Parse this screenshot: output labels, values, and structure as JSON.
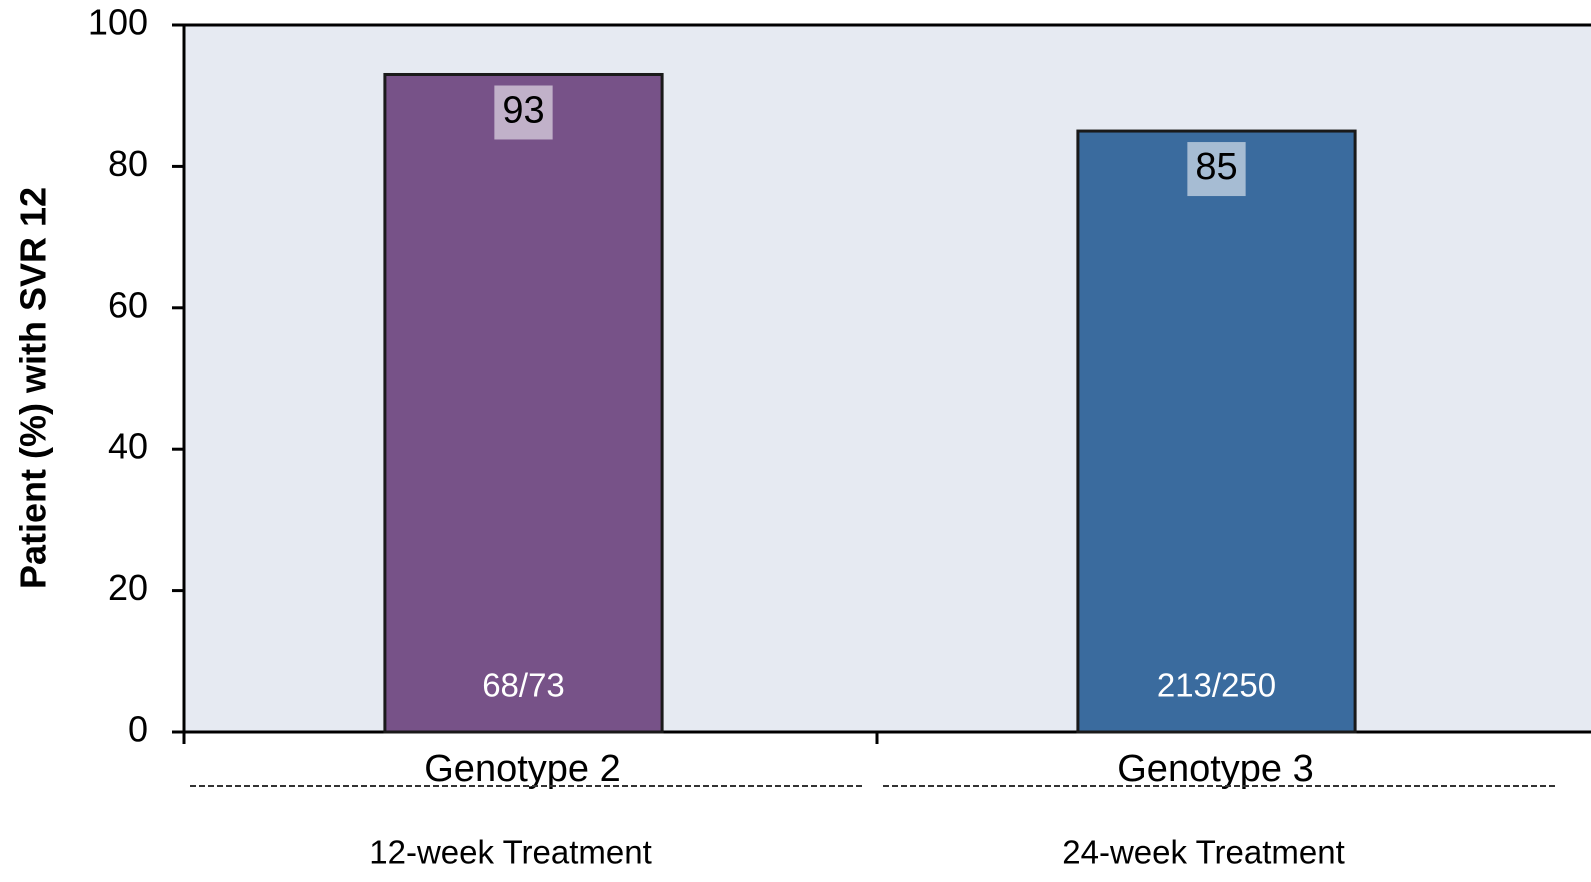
{
  "chart_data": {
    "type": "bar",
    "y_label": "Patient (%) with SVR 12",
    "categories": [
      "Genotype 2",
      "Genotype 3"
    ],
    "values": [
      93,
      85
    ],
    "colors": [
      "#775288",
      "#3a6b9e"
    ],
    "annotations": [
      "68/73",
      "213/250"
    ],
    "sublabels": [
      "12-week Treatment",
      "24-week Treatment"
    ],
    "ylim": [
      0,
      100
    ],
    "yticks": [
      0,
      20,
      40,
      60,
      80,
      100
    ],
    "grid": false
  }
}
